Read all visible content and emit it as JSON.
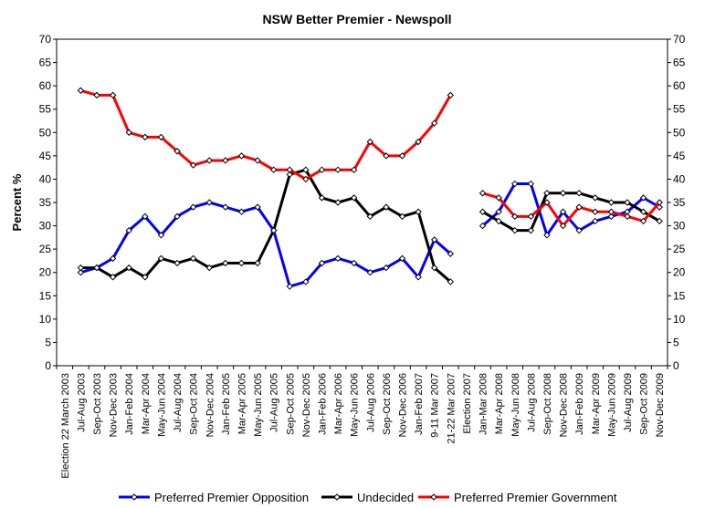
{
  "chart_data": {
    "type": "line",
    "title": "NSW Better Premier - Newspoll",
    "xlabel": "",
    "ylabel": "Percent %",
    "ylim": [
      0,
      70
    ],
    "ytick_step": 5,
    "secondary_y_axis": true,
    "grid": false,
    "legend_position": "bottom",
    "categories": [
      "Election 22 March 2003",
      "Jul-Aug 2003",
      "Sep-Oct 2003",
      "Nov-Dec 2003",
      "Jan-Feb 2004",
      "Mar-Apr 2004",
      "May-Jun 2004",
      "Jul-Aug 2004",
      "Sep-Oct 2004",
      "Nov-Dec 2004",
      "Jan-Feb 2005",
      "Mar-Apr 2005",
      "May-Jun 2005",
      "Jul-Aug 2005",
      "Sep-Oct 2005",
      "Nov-Dec 2005",
      "Jan-Feb 2006",
      "Mar-Apr 2006",
      "May-Jun 2006",
      "Jul-Aug 2006",
      "Sep-Oct 2006",
      "Nov-Dec 2006",
      "Jan-Feb 2007",
      "9-11 Mar 2007",
      "21-22 Mar 2007",
      "Election 2007",
      "Jan-Mar 2008",
      "Mar-Apr 2008",
      "May-Jun 2008",
      "Jul-Aug 2008",
      "Sep-Oct 2008",
      "Nov-Dec 2008",
      "Jan-Feb 2009",
      "Mar-Apr 2009",
      "May-Jun 2009",
      "Jul-Aug 2009",
      "Sep-Oct 2009",
      "Nov-Dec 2009"
    ],
    "series": [
      {
        "name": "Preferred Premier Opposition",
        "color": "#0000ff",
        "values": [
          null,
          20,
          21,
          23,
          29,
          32,
          28,
          32,
          34,
          35,
          34,
          33,
          34,
          29,
          17,
          18,
          22,
          23,
          22,
          20,
          21,
          23,
          19,
          27,
          24,
          null,
          30,
          33,
          39,
          39,
          28,
          33,
          29,
          31,
          32,
          33,
          36,
          34
        ]
      },
      {
        "name": "Undecided",
        "color": "#000000",
        "values": [
          null,
          21,
          21,
          19,
          21,
          19,
          23,
          22,
          23,
          21,
          22,
          22,
          22,
          29,
          41,
          42,
          36,
          35,
          36,
          32,
          34,
          32,
          33,
          21,
          18,
          null,
          33,
          31,
          29,
          29,
          37,
          37,
          37,
          36,
          35,
          35,
          33,
          31
        ]
      },
      {
        "name": "Preferred Premier Government",
        "color": "#ff0000",
        "values": [
          null,
          59,
          58,
          58,
          50,
          49,
          49,
          46,
          43,
          44,
          44,
          45,
          44,
          42,
          42,
          40,
          42,
          42,
          42,
          48,
          45,
          45,
          48,
          52,
          58,
          null,
          37,
          36,
          32,
          32,
          35,
          30,
          34,
          33,
          33,
          32,
          31,
          35
        ]
      }
    ]
  }
}
